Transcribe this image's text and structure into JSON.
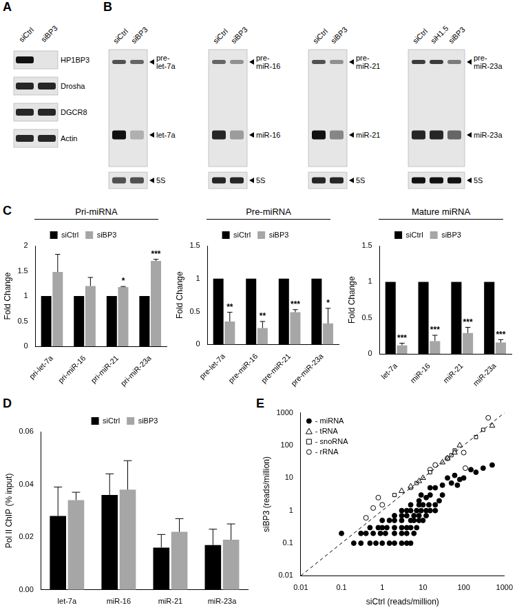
{
  "panel_labels": [
    "A",
    "B",
    "C",
    "D",
    "E"
  ],
  "blots": {
    "A": {
      "lanes": [
        "siCtrl",
        "siBP3"
      ],
      "rows": [
        {
          "label": "HP1BP3",
          "bands": [
            1,
            0
          ]
        },
        {
          "label": "Drosha",
          "bands": [
            0.9,
            0.9
          ]
        },
        {
          "label": "DGCR8",
          "bands": [
            0.9,
            0.9
          ]
        },
        {
          "label": "Actin",
          "bands": [
            0.9,
            0.9
          ]
        }
      ]
    },
    "B": [
      {
        "lanes": [
          "siCtrl",
          "siBP3"
        ],
        "rows": [
          {
            "label": "pre-\nlet-7a",
            "bands": [
              0.7,
              0.6
            ]
          },
          {
            "label": "let-7a",
            "bands": [
              1,
              0.25
            ]
          },
          {
            "label": "5S",
            "bands": [
              0.7,
              0.7
            ]
          }
        ]
      },
      {
        "lanes": [
          "siCtrl",
          "siBP3"
        ],
        "rows": [
          {
            "label": "pre-\nmiR-16",
            "bands": [
              0.6,
              0.4
            ]
          },
          {
            "label": "miR-16",
            "bands": [
              0.9,
              0.35
            ]
          },
          {
            "label": "5S",
            "bands": [
              0.9,
              0.9
            ]
          }
        ]
      },
      {
        "lanes": [
          "siCtrl",
          "siBP3"
        ],
        "rows": [
          {
            "label": "pre-\nmiR-21",
            "bands": [
              0.7,
              0.4
            ]
          },
          {
            "label": "miR-21",
            "bands": [
              1,
              0.45
            ]
          },
          {
            "label": "5S",
            "bands": [
              0.9,
              0.9
            ]
          }
        ]
      },
      {
        "lanes": [
          "siCtrl",
          "siH1.5",
          "siBP3"
        ],
        "rows": [
          {
            "label": "pre-\nmiR-23a",
            "bands": [
              0.8,
              0.8,
              0.5
            ]
          },
          {
            "label": "miR-23a",
            "bands": [
              0.9,
              0.9,
              0.6
            ]
          },
          {
            "label": "5S",
            "bands": [
              1,
              1,
              1
            ]
          }
        ]
      }
    ]
  },
  "chart_data": [
    {
      "type": "bar",
      "title": "Pri-miRNA",
      "ylabel": "Fold Change",
      "categories": [
        "pri-let-7a",
        "pri-miR-16",
        "pri-miR-21",
        "pri-miR-23a"
      ],
      "ylim": [
        0,
        2
      ],
      "yticks": [
        0,
        0.5,
        1,
        1.5,
        2
      ],
      "grid": false,
      "legend": "top",
      "series": [
        {
          "name": "siCtrl",
          "color": "#000000",
          "values": [
            1,
            1,
            1,
            1
          ]
        },
        {
          "name": "siBP3",
          "color": "#a6a6a6",
          "values": [
            1.48,
            1.2,
            1.18,
            1.7
          ],
          "errors": [
            0.35,
            0.17,
            0.01,
            0.03
          ],
          "significance": [
            null,
            null,
            "*",
            "***"
          ]
        }
      ]
    },
    {
      "type": "bar",
      "title": "Pre-miRNA",
      "ylabel": "Fold Change",
      "categories": [
        "pre-let-7a",
        "pre-miR-16",
        "pre-miR-21",
        "pre-miR-23a"
      ],
      "ylim": [
        0,
        1.5
      ],
      "yticks": [
        0,
        0.5,
        1,
        1.5
      ],
      "grid": false,
      "legend": "top",
      "series": [
        {
          "name": "siCtrl",
          "color": "#000000",
          "values": [
            1,
            1,
            1,
            1
          ]
        },
        {
          "name": "siBP3",
          "color": "#a6a6a6",
          "values": [
            0.35,
            0.25,
            0.49,
            0.32
          ],
          "errors": [
            0.14,
            0.1,
            0.04,
            0.23
          ],
          "significance": [
            "**",
            "**",
            "***",
            "*"
          ]
        }
      ]
    },
    {
      "type": "bar",
      "title": "Mature miRNA",
      "ylabel": "Fold Change",
      "categories": [
        "let-7a",
        "miR-16",
        "miR-21",
        "miR-23a"
      ],
      "ylim": [
        0,
        1.5
      ],
      "yticks": [
        0,
        0.5,
        1,
        1.5
      ],
      "grid": false,
      "legend": "top",
      "series": [
        {
          "name": "siCtrl",
          "color": "#000000",
          "values": [
            1,
            1,
            1,
            1
          ]
        },
        {
          "name": "siBP3",
          "color": "#a6a6a6",
          "values": [
            0.12,
            0.18,
            0.29,
            0.16
          ],
          "errors": [
            0.03,
            0.08,
            0.08,
            0.04
          ],
          "significance": [
            "***",
            "***",
            "***",
            "***"
          ]
        }
      ]
    },
    {
      "type": "bar",
      "ylabel": "Pol II ChIP (% input)",
      "categories": [
        "let-7a",
        "miR-16",
        "miR-21",
        "miR-23a"
      ],
      "ylim": [
        0,
        0.06
      ],
      "yticks": [
        {
          "value": 0,
          "label": "0.00"
        },
        {
          "value": 0.02,
          "label": "0.02"
        },
        {
          "value": 0.04,
          "label": "0.04"
        },
        {
          "value": 0.06,
          "label": "0.06"
        }
      ],
      "grid": false,
      "legend": "top",
      "series": [
        {
          "name": "siCtrl",
          "color": "#000000",
          "values": [
            0.028,
            0.036,
            0.016,
            0.017
          ],
          "errors": [
            0.011,
            0.008,
            0.005,
            0.006
          ]
        },
        {
          "name": "siBP3",
          "color": "#a6a6a6",
          "values": [
            0.034,
            0.038,
            0.022,
            0.019
          ],
          "errors": [
            0.003,
            0.011,
            0.005,
            0.006
          ]
        }
      ]
    },
    {
      "type": "scatter",
      "log": true,
      "grid": false,
      "legend": "top-left",
      "xlabel": "siCtrl (reads/million)",
      "ylabel": "siBP3 (reads/million)",
      "xlim": [
        0.01,
        1000
      ],
      "xticks": [
        0.01,
        0.1,
        1,
        10,
        100,
        1000
      ],
      "ylim": [
        0.01,
        1000
      ],
      "yticks": [
        0.01,
        0.1,
        1,
        10,
        100,
        1000
      ],
      "reference_line": {
        "x": [
          0.01,
          1000
        ],
        "values": [
          0.01,
          1000
        ],
        "line_style": "dashed",
        "color": "#000000"
      },
      "series": [
        {
          "name": "- miRNA",
          "marker": "filled_circle",
          "color": "#000000",
          "x": [
            0.2,
            0.3,
            0.5,
            0.7,
            1,
            1.5,
            2,
            3,
            4,
            5,
            0.1,
            0.3,
            0.4,
            0.6,
            0.9,
            1.2,
            2,
            3,
            4,
            6,
            0.5,
            0.8,
            1,
            1.3,
            2,
            3,
            4,
            5,
            7,
            1,
            1.5,
            2,
            3,
            5,
            6,
            8,
            10,
            2,
            3,
            4,
            6,
            8,
            12,
            3,
            4,
            5,
            7,
            9,
            12,
            15,
            20,
            5,
            8,
            10,
            14,
            20,
            8,
            12,
            15,
            25,
            30,
            9,
            20,
            30,
            50,
            70,
            15,
            40,
            60,
            80,
            100,
            200,
            300,
            500,
            150
          ],
          "values": [
            0.1,
            0.1,
            0.1,
            0.1,
            0.1,
            0.1,
            0.1,
            0.1,
            0.1,
            0.1,
            0.2,
            0.2,
            0.2,
            0.2,
            0.2,
            0.2,
            0.2,
            0.2,
            0.2,
            0.2,
            0.3,
            0.3,
            0.3,
            0.3,
            0.3,
            0.3,
            0.3,
            0.3,
            0.3,
            0.5,
            0.5,
            0.5,
            0.5,
            0.5,
            0.5,
            0.5,
            0.5,
            0.7,
            0.7,
            0.7,
            0.7,
            0.7,
            0.7,
            1,
            1,
            1,
            1,
            1,
            1,
            1,
            1,
            1.5,
            1.5,
            1.5,
            1.5,
            1.5,
            2,
            2.5,
            3,
            2,
            3,
            3,
            5,
            6,
            7,
            6,
            5,
            10,
            12,
            9,
            10,
            15,
            20,
            25,
            18
          ]
        },
        {
          "name": "- tRNA",
          "marker": "triangle",
          "color": "#000000",
          "x": [
            3,
            5,
            8,
            10,
            30,
            40,
            60,
            80,
            500
          ],
          "values": [
            4,
            5.5,
            8,
            10,
            30,
            40,
            60,
            100,
            400
          ]
        },
        {
          "name": "- snoRNA",
          "marker": "square",
          "color": "#000000",
          "x": [
            2,
            5,
            7,
            15,
            50,
            60,
            200,
            300
          ],
          "values": [
            3,
            5,
            7,
            15,
            50,
            70,
            180,
            300
          ]
        },
        {
          "name": "- rRNA",
          "marker": "circle",
          "color": "#000000",
          "x": [
            0.4,
            0.8,
            0.6,
            1,
            15,
            20,
            40,
            100,
            400,
            110
          ],
          "values": [
            0.6,
            2.5,
            1.2,
            1.5,
            18,
            25,
            40,
            60,
            700,
            20
          ]
        }
      ]
    }
  ]
}
